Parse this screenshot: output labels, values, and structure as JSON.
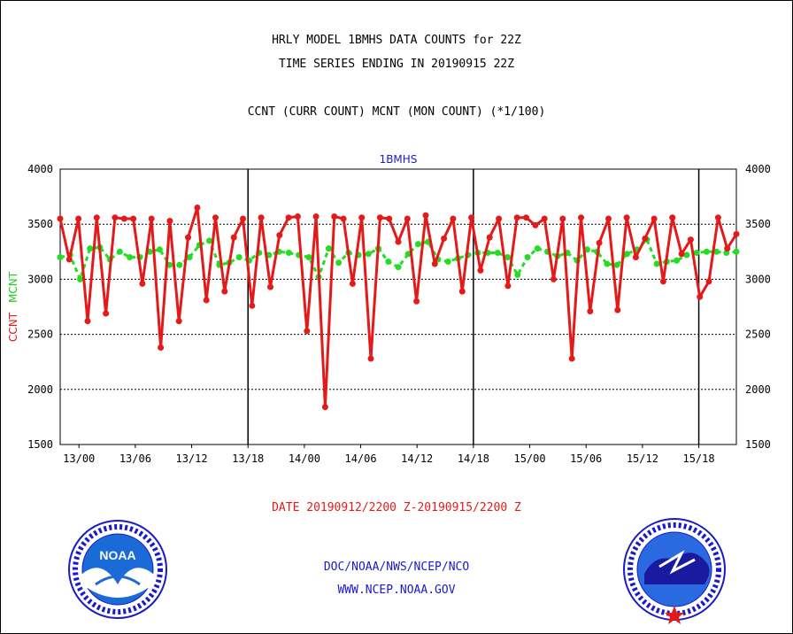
{
  "header": {
    "title_line1": "HRLY MODEL 1BMHS DATA COUNTS for 22Z",
    "title_line2": "TIME SERIES ENDING IN 20190915 22Z",
    "subtitle": "CCNT (CURR COUNT) MCNT (MON COUNT) (*1/100)"
  },
  "date_range": "DATE 20190912/2200 Z-20190915/2200 Z",
  "footer": {
    "line1": "DOC/NOAA/NWS/NCEP/NCO",
    "line2": "WWW.NCEP.NOAA.GOV"
  },
  "logos": {
    "left": {
      "text": "NOAA",
      "ring_text": "NATIONAL OCEANIC AND ATMOSPHERIC ADMINISTRATION · U.S. DEPARTMENT OF COMMERCE"
    },
    "right": {
      "ring_text": "NATIONAL WEATHER SERVICE"
    }
  },
  "colors": {
    "ccnt": "#e41a1a",
    "mcnt": "#22dd22",
    "label_blue": "#1a1ac8"
  },
  "chart_data": {
    "type": "line",
    "title": "1BMHS",
    "ylabel_left": [
      "CCNT",
      "MCNT"
    ],
    "ylim": [
      1500,
      4000
    ],
    "yticks": [
      1500,
      2000,
      2500,
      3000,
      3500,
      4000
    ],
    "x_start_hour": -2,
    "x_end_hour": 70,
    "xticks": [
      {
        "label": "13/00",
        "hour": 0
      },
      {
        "label": "13/06",
        "hour": 6
      },
      {
        "label": "13/12",
        "hour": 12
      },
      {
        "label": "13/18",
        "hour": 18
      },
      {
        "label": "14/00",
        "hour": 24
      },
      {
        "label": "14/06",
        "hour": 30
      },
      {
        "label": "14/12",
        "hour": 36
      },
      {
        "label": "14/18",
        "hour": 42
      },
      {
        "label": "15/00",
        "hour": 48
      },
      {
        "label": "15/06",
        "hour": 54
      },
      {
        "label": "15/12",
        "hour": 60
      },
      {
        "label": "15/18",
        "hour": 66
      }
    ],
    "day_boundaries_hour": [
      18,
      42,
      66
    ],
    "grid_y": [
      2000,
      2500,
      3000,
      3500
    ],
    "series": [
      {
        "name": "CCNT",
        "values": [
          3550,
          3180,
          3550,
          2620,
          3560,
          2690,
          3560,
          3550,
          3550,
          2960,
          3550,
          2380,
          3530,
          2620,
          3380,
          3650,
          2810,
          3560,
          2890,
          3380,
          3550,
          2760,
          3560,
          2930,
          3400,
          3560,
          3570,
          2530,
          3570,
          1840,
          3570,
          3550,
          2960,
          3560,
          2280,
          3560,
          3550,
          3340,
          3550,
          2800,
          3580,
          3140,
          3370,
          3550,
          2890,
          3560,
          3080,
          3380,
          3550,
          2940,
          3560,
          3560,
          3490,
          3550,
          3000,
          3550,
          2280,
          3560,
          2710,
          3330,
          3550,
          2720,
          3560,
          3200,
          3370,
          3550,
          2980,
          3560,
          3230,
          3360,
          2840,
          2980,
          3560,
          3280,
          3410
        ]
      },
      {
        "name": "MCNT",
        "values": [
          3200,
          3220,
          3000,
          3280,
          3290,
          3180,
          3250,
          3200,
          3200,
          3250,
          3270,
          3130,
          3130,
          3200,
          3310,
          3350,
          3130,
          3150,
          3200,
          3170,
          3240,
          3220,
          3250,
          3240,
          3220,
          3200,
          3020,
          3280,
          3150,
          3240,
          3220,
          3230,
          3280,
          3160,
          3110,
          3230,
          3320,
          3340,
          3180,
          3160,
          3190,
          3220,
          3240,
          3240,
          3240,
          3200,
          3040,
          3200,
          3280,
          3250,
          3210,
          3240,
          3170,
          3270,
          3250,
          3140,
          3130,
          3230,
          3270,
          3360,
          3140,
          3160,
          3170,
          3220,
          3240,
          3250,
          3250,
          3240,
          3250
        ]
      }
    ]
  }
}
